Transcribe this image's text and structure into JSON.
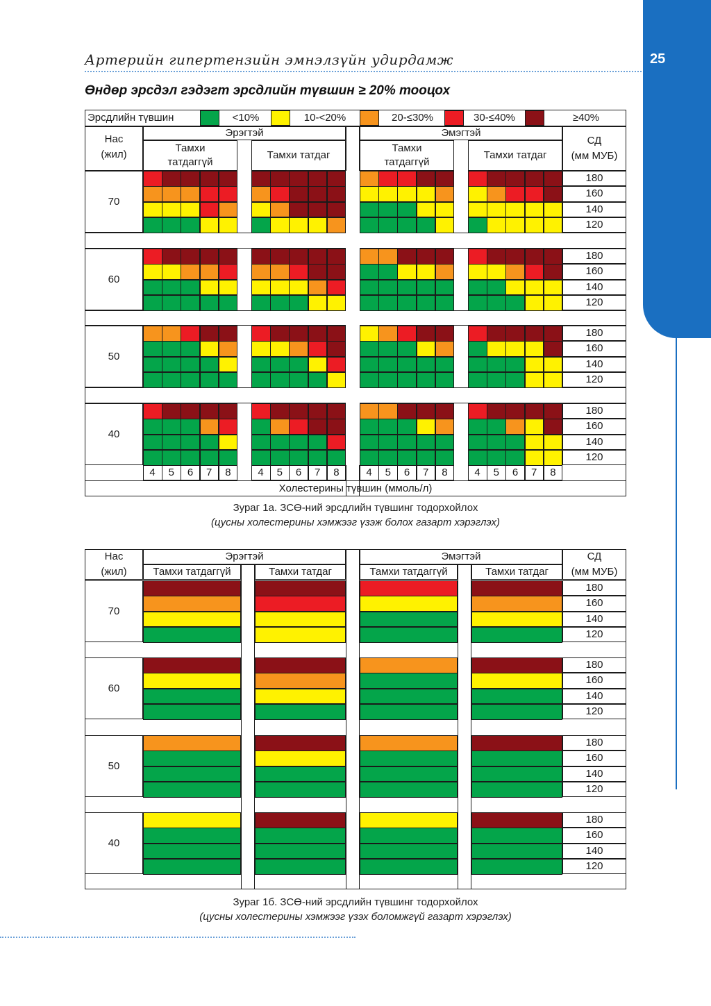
{
  "header": {
    "running_title": "Артерийн гипертензийн эмнэлзүйн удирдамж",
    "page_number": "25",
    "accent_color": "#1a6fc1"
  },
  "section_title": "Өндөр эрсдэл гэдэгт эрсдлийн түвшин ≥ 20% тооцох",
  "colors": {
    "green": "#04a54a",
    "yellow": "#fff200",
    "orange": "#f7941d",
    "red": "#ec1c24",
    "darkred": "#8b1117"
  },
  "legend": {
    "title": "Эрсдлийн түвшин",
    "items": [
      {
        "color": "green",
        "label": "<10%"
      },
      {
        "color": "yellow",
        "label": "10-<20%"
      },
      {
        "color": "orange",
        "label": "20-≤30%"
      },
      {
        "color": "red",
        "label": "30-≤40%"
      },
      {
        "color": "darkred",
        "label": "≥40%"
      }
    ]
  },
  "common": {
    "age_header": [
      "Нас",
      "(жил)"
    ],
    "male": "Эрэгтэй",
    "female": "Эмэгтэй",
    "sbp_header": [
      "СД",
      "(мм МУБ)"
    ],
    "nonsmoker_wrapped": [
      "Тамхи",
      "татдаггүй"
    ],
    "nonsmoker": "Тамхи татдаггүй",
    "smoker": "Тамхи татдаг",
    "ages": [
      "70",
      "60",
      "50",
      "40"
    ],
    "sbp_levels": [
      "180",
      "160",
      "140",
      "120"
    ],
    "cholesterol_levels": [
      "4",
      "5",
      "6",
      "7",
      "8"
    ],
    "cholesterol_label": "Холестерины түвшин (ммоль/л)"
  },
  "figure_a": {
    "caption": "Зураг 1а. ЗСӨ-ний эрсдлийн түвшинг тодорхойлох",
    "subcaption": "(цусны холестерины хэмжээг үзэж болох газарт хэрэглэх)",
    "groups": [
      {
        "m_ns": [
          "RDDDD",
          "OOORR",
          "YYYRO",
          "GGGYY"
        ],
        "m_s": [
          "DDDDD",
          "ORDDD",
          "YODDD",
          "GYYYO"
        ],
        "f_ns": [
          "ORRDD",
          "YYYYO",
          "GGGYY",
          "GGGGY"
        ],
        "f_s": [
          "RDDDD",
          "YORRD",
          "YYYYY",
          "GYYYY"
        ]
      },
      {
        "m_ns": [
          "RDDDD",
          "YYOOR",
          "GGGYY",
          "GGGGG"
        ],
        "m_s": [
          "DDDDD",
          "OORDD",
          "YYYOR",
          "GGGYY"
        ],
        "f_ns": [
          "OODDD",
          "GGYYO",
          "GGGGG",
          "GGGGG"
        ],
        "f_s": [
          "RDDDD",
          "YYORD",
          "GGYYY",
          "GGGYY"
        ]
      },
      {
        "m_ns": [
          "OORDD",
          "GGGYO",
          "GGGGY",
          "GGGGG"
        ],
        "m_s": [
          "RDDDD",
          "YYORD",
          "GGGYR",
          "GGGGY"
        ],
        "f_ns": [
          "YORDD",
          "GGGYO",
          "GGGGG",
          "GGGGG"
        ],
        "f_s": [
          "RDDDD",
          "GYYYD",
          "GGGYY",
          "GGGYY"
        ]
      },
      {
        "m_ns": [
          "RDDDD",
          "GGGOR",
          "GGGGY",
          "GGGGG"
        ],
        "m_s": [
          "RDDDD",
          "GORDD",
          "GGGGR",
          "GGGGG"
        ],
        "f_ns": [
          "OODDD",
          "GGGYO",
          "GGGGG",
          "GGGGG"
        ],
        "f_s": [
          "RDDDD",
          "GGOYD",
          "GGGYY",
          "GGGYY"
        ]
      }
    ]
  },
  "figure_b": {
    "caption": "Зураг 1б. ЗСӨ-ний эрсдлийн түвшинг тодорхойлох",
    "subcaption": "(цусны холестерины хэмжээг үзэх боломжгүй газарт хэрэглэх)",
    "groups": [
      {
        "m_ns": "DOYG",
        "m_s": "DRYY",
        "f_ns": "RYGG",
        "f_s": "DOYG"
      },
      {
        "m_ns": "DYGG",
        "m_s": "DOYG",
        "f_ns": "OGGG",
        "f_s": "DYGG"
      },
      {
        "m_ns": "OGGG",
        "m_s": "DYGG",
        "f_ns": "OGGG",
        "f_s": "DGGG"
      },
      {
        "m_ns": "YGGG",
        "m_s": "DGGG",
        "f_ns": "YGGG",
        "f_s": "DGGG"
      }
    ]
  }
}
